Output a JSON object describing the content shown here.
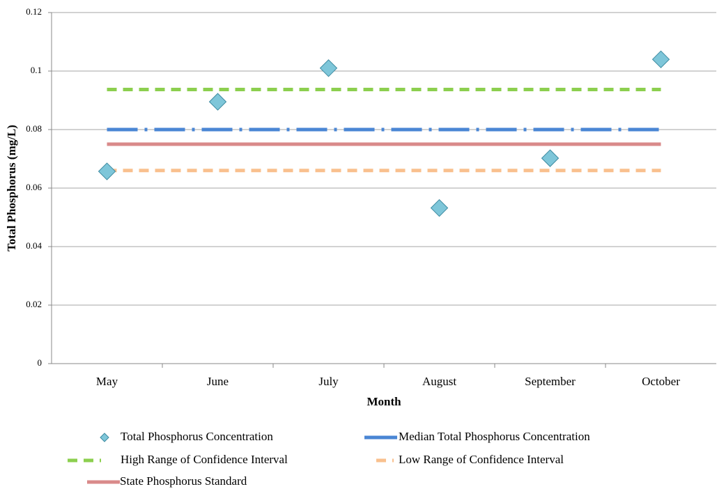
{
  "chart_data": {
    "type": "line",
    "x_label": "Month",
    "y_label": "Total Phosphorus (mg/L)",
    "categories": [
      "May",
      "June",
      "July",
      "August",
      "September",
      "October"
    ],
    "ylim": [
      0,
      0.12
    ],
    "yticks": [
      0,
      0.02,
      0.04,
      0.06,
      0.08,
      0.1,
      0.12
    ],
    "grid": true,
    "legend": "bottom",
    "series": [
      {
        "name": "Total Phosphorus Concentration",
        "color": "#7ec6d9",
        "marker": "diamond",
        "line_style": "none",
        "values": [
          0.0657,
          0.0895,
          0.101,
          0.0532,
          0.0702,
          0.104
        ]
      },
      {
        "name": "Median Total Phosphorus Concentration",
        "color": "#4a86d4",
        "marker": "none",
        "line_style": "dashdot",
        "values": [
          0.08,
          0.08,
          0.08,
          0.08,
          0.08,
          0.08
        ]
      },
      {
        "name": "High Range of Confidence Interval",
        "color": "#8ccf4f",
        "marker": "none",
        "line_style": "dash",
        "values": [
          0.0937,
          0.0937,
          0.0937,
          0.0937,
          0.0937,
          0.0937
        ]
      },
      {
        "name": "Low Range of Confidence Interval",
        "color": "#f9c08e",
        "marker": "none",
        "line_style": "dash",
        "values": [
          0.066,
          0.066,
          0.066,
          0.066,
          0.066,
          0.066
        ]
      },
      {
        "name": "State Phosphorus Standard",
        "color": "#d98a8a",
        "marker": "none",
        "line_style": "solid",
        "values": [
          0.075,
          0.075,
          0.075,
          0.075,
          0.075,
          0.075
        ]
      }
    ]
  }
}
